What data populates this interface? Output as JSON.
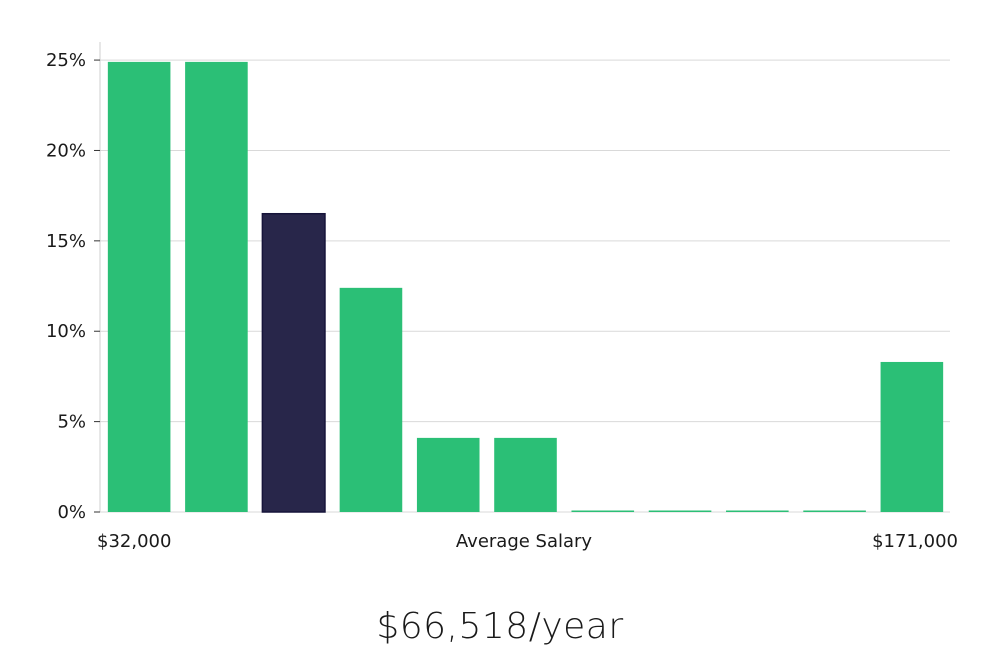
{
  "chart_data": {
    "type": "bar",
    "title": "",
    "xlabel": "Average Salary",
    "ylabel": "",
    "x_range_labels": {
      "min": "$32,000",
      "max": "$171,000"
    },
    "values": [
      24.9,
      24.9,
      16.5,
      12.4,
      4.1,
      4.1,
      0,
      0,
      0,
      0,
      8.3
    ],
    "highlight_index": 2,
    "ylim": [
      0,
      26
    ],
    "yticks": [
      0,
      5,
      10,
      15,
      20,
      25
    ],
    "ytick_labels": [
      "0%",
      "5%",
      "10%",
      "15%",
      "20%",
      "25%"
    ],
    "grid": true,
    "colors": {
      "bar": "#2bbf76",
      "highlight": "#28264a",
      "grid": "#d9d9d9",
      "axis": "#cfcfcf"
    }
  },
  "salary_text": "$66,518/year"
}
